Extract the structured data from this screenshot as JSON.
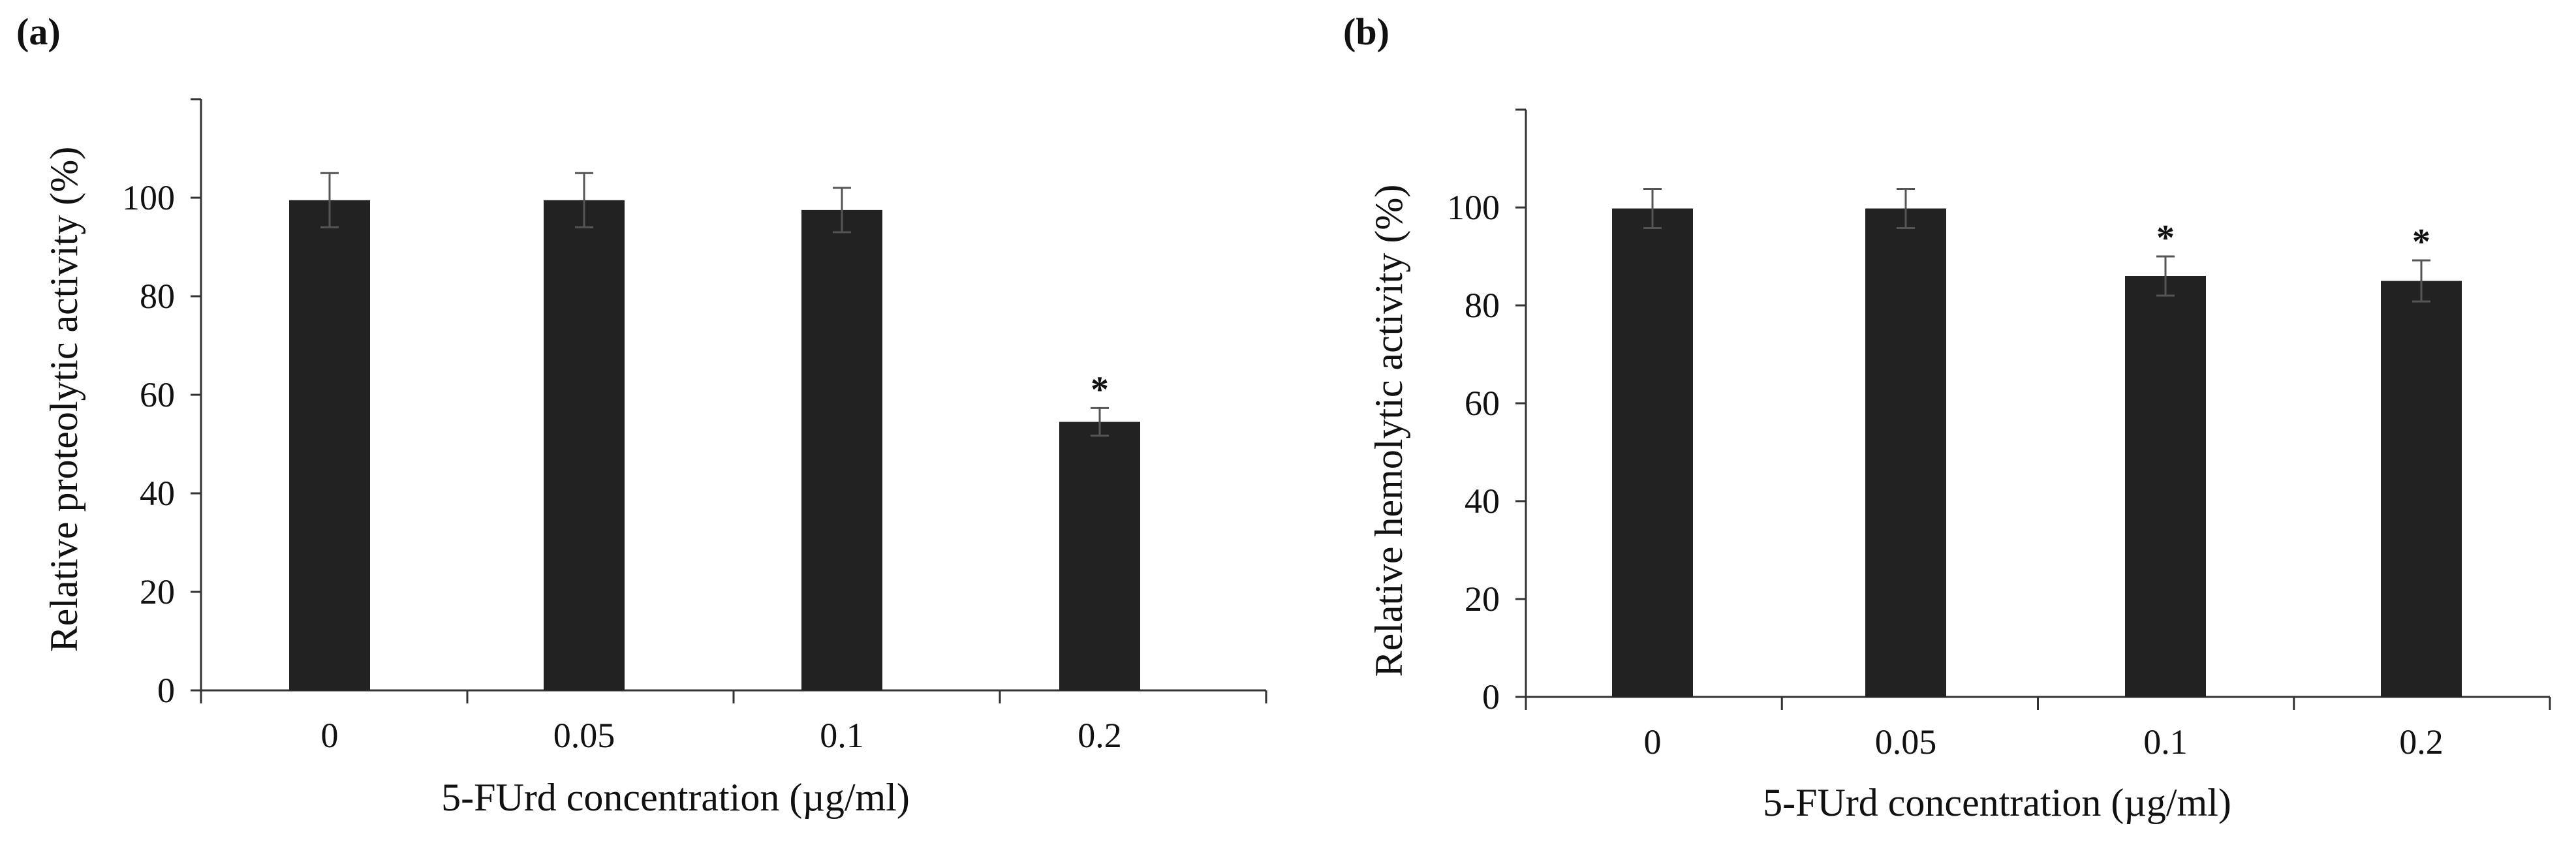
{
  "colors": {
    "bar": "#222222",
    "axis": "#333333",
    "error": "#555555",
    "text": "#111111"
  },
  "chart_data": [
    {
      "type": "bar",
      "panel_label": "(a)",
      "title": "",
      "xlabel": "5-FUrd concentration (µg/ml)",
      "ylabel": "Relative proteolytic activity (%)",
      "categories": [
        "0",
        "0.05",
        "0.1",
        "0.2"
      ],
      "values": [
        99.5,
        99.5,
        97.5,
        54.5
      ],
      "errors": [
        5.5,
        5.5,
        4.5,
        2.8
      ],
      "significance": [
        "",
        "",
        "",
        "*"
      ],
      "ylim": [
        0,
        120
      ],
      "yticks": [
        0,
        20,
        40,
        60,
        80,
        100
      ],
      "ytick_labels": [
        "0",
        "20",
        "40",
        "60",
        "80",
        "100"
      ],
      "grid": false
    },
    {
      "type": "bar",
      "panel_label": "(b)",
      "title": "",
      "xlabel": "5-FUrd concentration (µg/ml)",
      "ylabel": "Relative hemolytic activity (%)",
      "categories": [
        "0",
        "0.05",
        "0.1",
        "0.2"
      ],
      "values": [
        99.8,
        99.8,
        86.0,
        85.0
      ],
      "errors": [
        4.0,
        4.0,
        4.0,
        4.2
      ],
      "significance": [
        "",
        "",
        "*",
        "*"
      ],
      "ylim": [
        0,
        120
      ],
      "yticks": [
        0,
        20,
        40,
        60,
        80,
        100
      ],
      "ytick_labels": [
        "0",
        "20",
        "40",
        "60",
        "80",
        "100"
      ],
      "grid": false
    }
  ]
}
